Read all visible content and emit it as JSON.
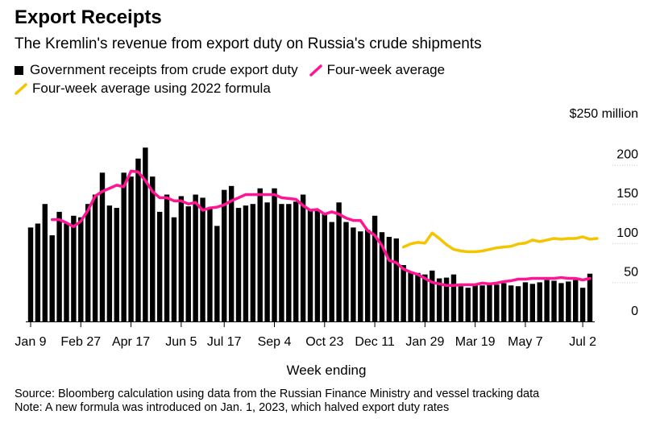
{
  "title": "Export Receipts",
  "subtitle": "The Kremlin's revenue from export duty on Russia's crude shipments",
  "legend": {
    "bars": "Government receipts from crude export duty",
    "avg": "Four-week average",
    "avg2022": "Four-week average using 2022 formula"
  },
  "source": "Source: Bloomberg calculation using data from the Russian Finance Ministry and vessel tracking data",
  "note": "Note: A new formula was introduced on Jan. 1, 2023, which halved export duty rates",
  "colors": {
    "bars": "#000000",
    "avg": "#ff1493",
    "avg2022": "#f5c400"
  },
  "chart_data": {
    "type": "bar",
    "title": "Export Receipts",
    "xlabel": "Week ending",
    "ylabel": "",
    "ylim": [
      0,
      250
    ],
    "yticks": [
      0,
      50,
      100,
      150,
      200
    ],
    "ytick_labels": [
      "0",
      "50",
      "100",
      "150",
      "200",
      "$250 million"
    ],
    "x_tick_labels": [
      {
        "index": 0,
        "label": "Jan 9"
      },
      {
        "index": 7,
        "label": "Feb 27"
      },
      {
        "index": 14,
        "label": "Apr 17"
      },
      {
        "index": 21,
        "label": "Jun 5"
      },
      {
        "index": 27,
        "label": "Jul 17"
      },
      {
        "index": 34,
        "label": "Sep 4"
      },
      {
        "index": 41,
        "label": "Oct 23"
      },
      {
        "index": 48,
        "label": "Dec 11"
      },
      {
        "index": 55,
        "label": "Jan 29"
      },
      {
        "index": 62,
        "label": "Mar 19"
      },
      {
        "index": 69,
        "label": "May 7"
      },
      {
        "index": 77,
        "label": "Jul 2"
      }
    ],
    "series": [
      {
        "name": "Government receipts from crude export duty",
        "kind": "bar",
        "values": [
          120,
          125,
          150,
          110,
          140,
          125,
          135,
          133,
          150,
          162,
          190,
          148,
          145,
          190,
          185,
          208,
          222,
          185,
          140,
          162,
          133,
          160,
          147,
          162,
          158,
          145,
          122,
          168,
          173,
          145,
          148,
          150,
          170,
          152,
          170,
          150,
          150,
          153,
          162,
          143,
          143,
          138,
          127,
          152,
          127,
          120,
          115,
          117,
          135,
          114,
          108,
          106,
          72,
          63,
          62,
          60,
          65,
          55,
          56,
          60,
          45,
          43,
          46,
          46,
          49,
          47,
          49,
          46,
          45,
          50,
          48,
          50,
          53,
          52,
          49,
          51,
          53,
          43,
          61
        ]
      },
      {
        "name": "Four-week average",
        "kind": "line",
        "start_index": 3,
        "values": [
          130,
          130,
          126,
          121,
          128,
          142,
          160,
          166,
          170,
          174,
          172,
          192,
          191,
          180,
          166,
          158,
          158,
          154,
          154,
          150,
          152,
          142,
          145,
          146,
          149,
          154,
          158,
          162,
          162,
          162,
          162,
          162,
          158,
          157,
          156,
          148,
          142,
          143,
          137,
          140,
          137,
          132,
          129,
          129,
          116,
          110,
          97,
          78,
          75,
          67,
          63,
          60,
          55,
          50,
          48,
          46,
          46,
          47,
          47,
          47,
          49,
          48,
          49,
          51,
          52,
          54,
          54,
          55,
          55,
          55,
          55,
          56,
          55,
          55,
          53,
          55
        ]
      },
      {
        "name": "Four-week average using 2022 formula",
        "kind": "line",
        "start_index": 52,
        "values": [
          95,
          99,
          101,
          100,
          113,
          106,
          98,
          92,
          90,
          89,
          89,
          90,
          92,
          94,
          95,
          96,
          99,
          100,
          104,
          102,
          104,
          106,
          105,
          106,
          106,
          108,
          105,
          106
        ]
      }
    ]
  }
}
